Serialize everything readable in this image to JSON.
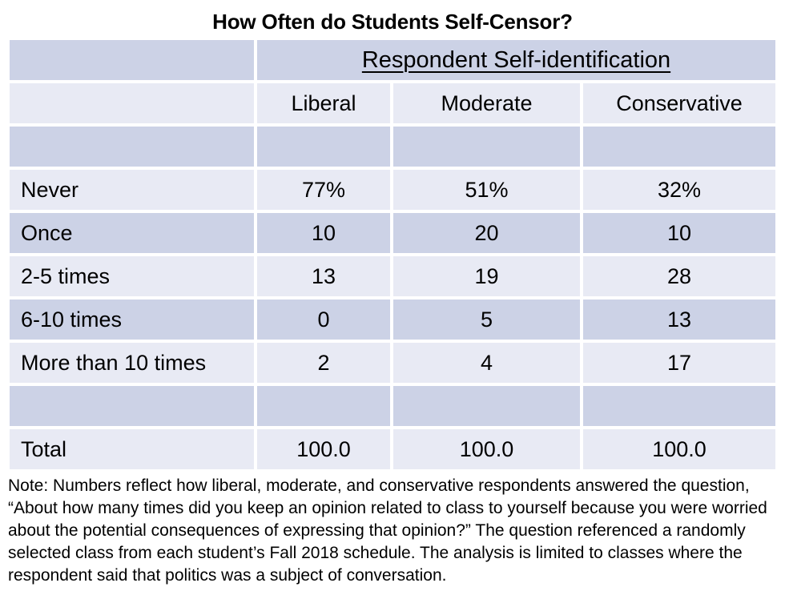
{
  "chart_data": {
    "type": "table",
    "title": "How Often do Students Self-Censor?",
    "group_header": "Respondent Self-identification",
    "columns": [
      "Liberal",
      "Moderate",
      "Conservative"
    ],
    "rows": [
      {
        "label": "Never",
        "values": [
          "77%",
          "51%",
          "32%"
        ]
      },
      {
        "label": "Once",
        "values": [
          "10",
          "20",
          "10"
        ]
      },
      {
        "label": "2-5 times",
        "values": [
          "13",
          "19",
          "28"
        ]
      },
      {
        "label": "6-10 times",
        "values": [
          "0",
          "5",
          "13"
        ]
      },
      {
        "label": "More than 10 times",
        "values": [
          "2",
          "4",
          "17"
        ]
      },
      {
        "label": "Total",
        "values": [
          "100.0",
          "100.0",
          "100.0"
        ]
      }
    ],
    "note": "Note: Numbers reflect how liberal, moderate, and conservative respondents answered the question, “About how many times did you keep an opinion related to class to yourself because you were worried about the potential consequences of expressing that opinion?” The question referenced a randomly selected class from each student’s Fall 2018 schedule. The analysis is limited to classes where the respondent said that politics was a subject of conversation.",
    "layout_hints": {
      "band_style": "alternating rows, white separators",
      "row_label_alignment": "left",
      "value_alignment": "center"
    }
  },
  "colors": {
    "band_dark": "#ccd2e6",
    "band_light": "#e8eaf4",
    "separator": "#ffffff",
    "text": "#000000",
    "page_bg": "#ffffff"
  }
}
